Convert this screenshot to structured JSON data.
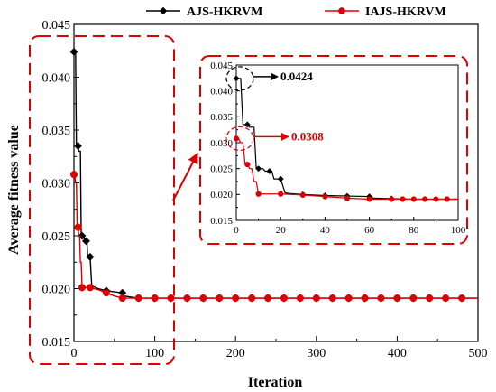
{
  "colors": {
    "series_a": "#000000",
    "series_b": "#dd0000",
    "highlight": "#dd0000"
  },
  "chart_data": [
    {
      "type": "line",
      "panel": "main",
      "xlabel": "Iteration",
      "ylabel": "Average fitness value",
      "xlim": [
        0,
        500
      ],
      "ylim": [
        0.015,
        0.045
      ],
      "xticks": [
        "0",
        "100",
        "200",
        "300",
        "400",
        "500"
      ],
      "yticks": [
        "0.015",
        "0.020",
        "0.025",
        "0.030",
        "0.035",
        "0.040",
        "0.045"
      ],
      "legend": {
        "placement": "top-center",
        "entries": [
          "AJS-HKRVM",
          "IAJS-HKRVM"
        ]
      },
      "series": [
        {
          "name": "AJS-HKRVM",
          "color": "#000000",
          "marker": "diamond",
          "x": [
            0,
            2,
            3,
            5,
            6,
            8,
            9,
            12,
            13,
            16,
            17,
            20,
            22,
            24,
            30,
            40,
            50,
            60,
            62,
            70,
            80,
            90,
            100,
            120,
            500
          ],
          "y": [
            0.0424,
            0.0424,
            0.0335,
            0.0335,
            0.033,
            0.033,
            0.025,
            0.025,
            0.0245,
            0.0245,
            0.023,
            0.023,
            0.0203,
            0.0202,
            0.02,
            0.0198,
            0.0197,
            0.0196,
            0.0193,
            0.0192,
            0.0191,
            0.0191,
            0.0191,
            0.0191,
            0.0191
          ],
          "marker_x": [
            0,
            5,
            10,
            15,
            20,
            40,
            60,
            80,
            100,
            120,
            140,
            160,
            180,
            200,
            220,
            240,
            260,
            280,
            300,
            320,
            340,
            360,
            380,
            400,
            420,
            440,
            460,
            480
          ]
        },
        {
          "name": "IAJS-HKRVM",
          "color": "#dd0000",
          "marker": "circle",
          "x": [
            0,
            1,
            2,
            3,
            4,
            5,
            6,
            7,
            8,
            9,
            10,
            12,
            20,
            30,
            40,
            50,
            60,
            70,
            80,
            90,
            100,
            500
          ],
          "y": [
            0.0308,
            0.0308,
            0.03,
            0.03,
            0.0258,
            0.0258,
            0.025,
            0.025,
            0.0225,
            0.0225,
            0.0201,
            0.0201,
            0.0201,
            0.0199,
            0.0196,
            0.0193,
            0.0191,
            0.0191,
            0.0191,
            0.0191,
            0.0191,
            0.0191
          ],
          "marker_x": [
            0,
            5,
            10,
            20,
            40,
            60,
            80,
            100,
            120,
            140,
            160,
            180,
            200,
            220,
            240,
            260,
            280,
            300,
            320,
            340,
            360,
            380,
            400,
            420,
            440,
            460,
            480
          ]
        }
      ]
    },
    {
      "type": "line",
      "panel": "inset",
      "xlim": [
        0,
        100
      ],
      "ylim": [
        0.015,
        0.045
      ],
      "xticks": [
        "0",
        "20",
        "40",
        "60",
        "80",
        "100"
      ],
      "yticks": [
        "0.015",
        "0.020",
        "0.025",
        "0.030",
        "0.035",
        "0.040",
        "0.045"
      ],
      "annotations": [
        {
          "text": "0.0424",
          "x": 0,
          "y": 0.0424,
          "color": "#000000"
        },
        {
          "text": "0.0308",
          "x": 0,
          "y": 0.0308,
          "color": "#dd0000"
        }
      ],
      "inset_marker_x": {
        "AJS-HKRVM": [
          0,
          5,
          10,
          15,
          20,
          30,
          40,
          50,
          60,
          70
        ],
        "IAJS-HKRVM": [
          0,
          5,
          10,
          20,
          30,
          40,
          50,
          60,
          70,
          75,
          80,
          85,
          90,
          95
        ]
      }
    }
  ]
}
